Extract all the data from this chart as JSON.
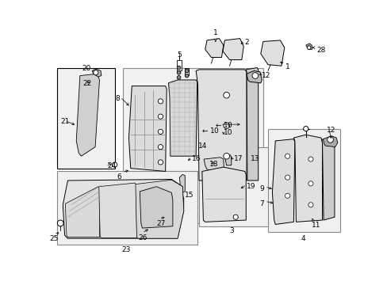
{
  "bg_color": "#ffffff",
  "line_color": "#000000",
  "fig_width": 4.89,
  "fig_height": 3.6,
  "dpi": 100,
  "gray_light": "#e8e8e8",
  "gray_mid": "#d0d0d0",
  "gray_dark": "#b0b0b0",
  "box_edge": "#555555",
  "fs": 6.5
}
